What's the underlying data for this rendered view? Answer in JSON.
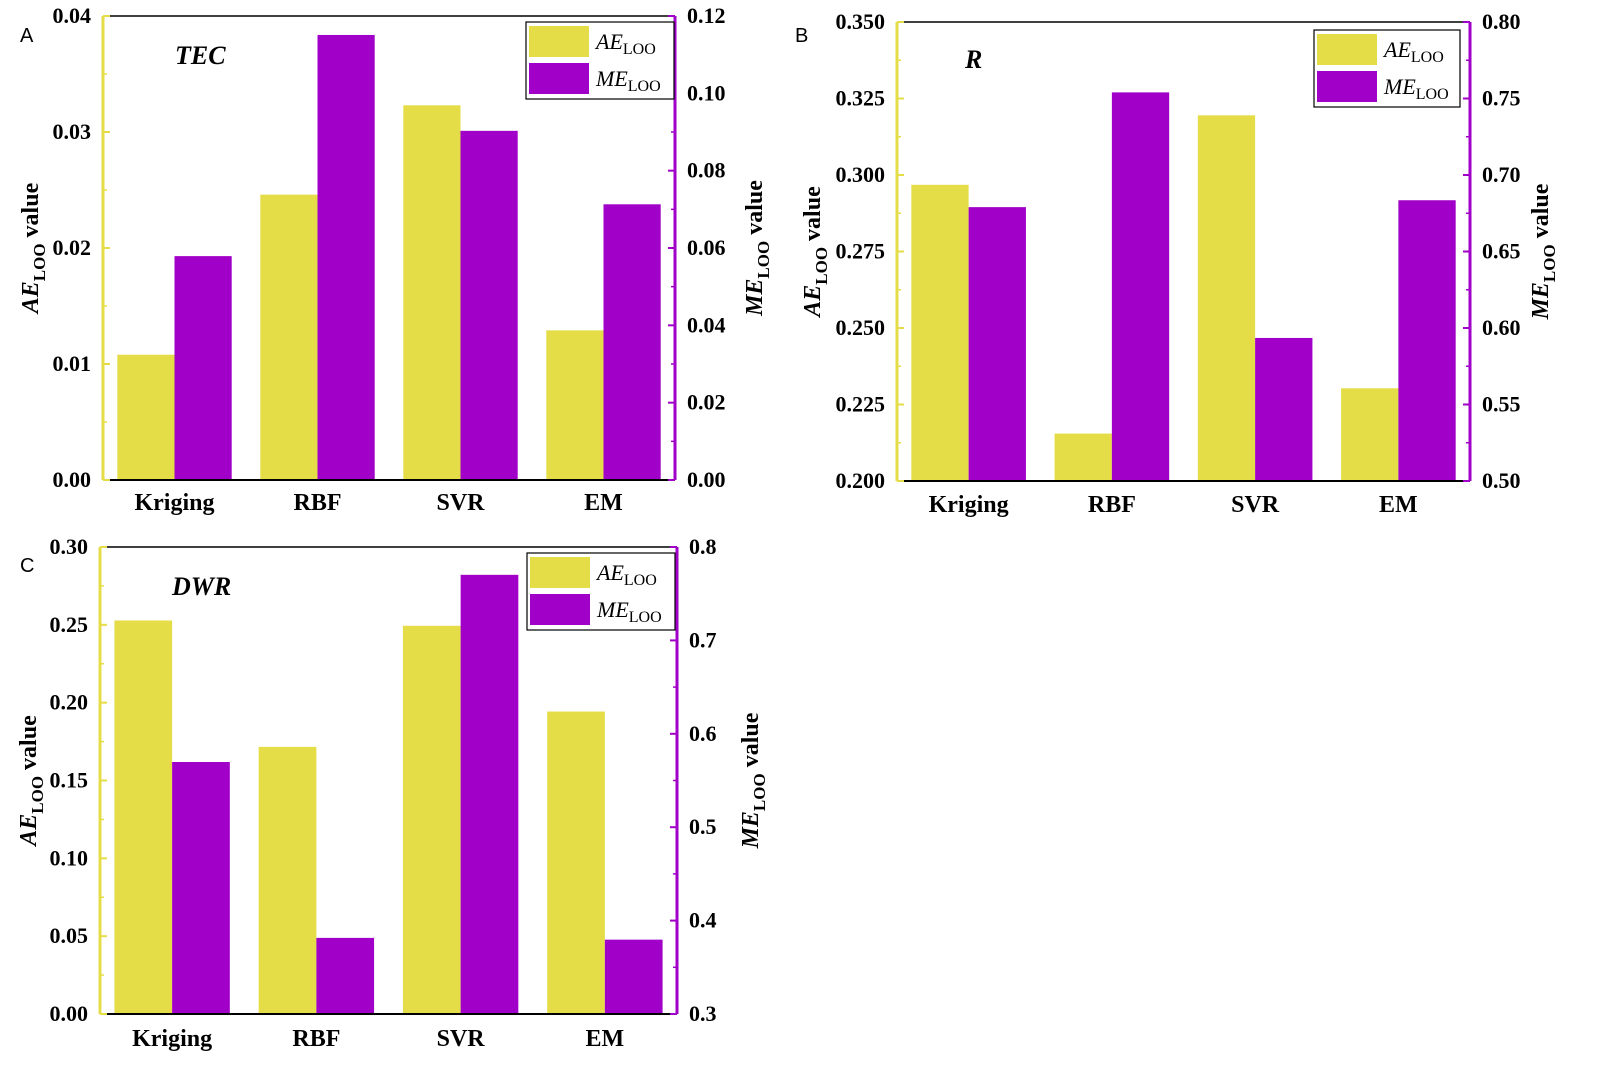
{
  "colors": {
    "ae": "#e5dd48",
    "me": "#a100c8",
    "left_axis": "#e5dd48",
    "right_axis": "#a100c8",
    "frame": "#000000"
  },
  "chart_data": [
    {
      "type": "bar",
      "panel": "A",
      "title": "TEC",
      "categories": [
        "Kriging",
        "RBF",
        "SVR",
        "EM"
      ],
      "series": [
        {
          "name": "AE",
          "name_sub": "LOO",
          "axis": "left",
          "values": [
            0.0108,
            0.0246,
            0.0323,
            0.0129
          ]
        },
        {
          "name": "ME",
          "name_sub": "LOO",
          "axis": "right",
          "values": [
            0.0579,
            0.1151,
            0.0903,
            0.0713
          ]
        }
      ],
      "ylabel_left": {
        "main": "AE",
        "sub": "LOO",
        "tail": " value"
      },
      "ylabel_right": {
        "main": "ME",
        "sub": "LOO",
        "tail": " value"
      },
      "ylim_left": [
        0,
        0.04
      ],
      "ylim_right": [
        0,
        0.12
      ],
      "yticks_left": [
        "0.00",
        "0.01",
        "0.02",
        "0.03",
        "0.04"
      ],
      "yticks_right": [
        "0.00",
        "0.02",
        "0.04",
        "0.06",
        "0.08",
        "0.10",
        "0.12"
      ],
      "legend": "top-right"
    },
    {
      "type": "bar",
      "panel": "B",
      "title": "R",
      "categories": [
        "Kriging",
        "RBF",
        "SVR",
        "EM"
      ],
      "series": [
        {
          "name": "AE",
          "name_sub": "LOO",
          "axis": "left",
          "values": [
            0.2968,
            0.2155,
            0.3195,
            0.2303
          ]
        },
        {
          "name": "ME",
          "name_sub": "LOO",
          "axis": "right",
          "values": [
            0.679,
            0.754,
            0.5935,
            0.6835
          ]
        }
      ],
      "ylabel_left": {
        "main": "AE",
        "sub": "LOO",
        "tail": " value"
      },
      "ylabel_right": {
        "main": "ME",
        "sub": "LOO",
        "tail": " value"
      },
      "ylim_left": [
        0.2,
        0.35
      ],
      "ylim_right": [
        0.5,
        0.8
      ],
      "yticks_left": [
        "0.200",
        "0.225",
        "0.250",
        "0.275",
        "0.300",
        "0.325",
        "0.350"
      ],
      "yticks_right": [
        "0.50",
        "0.55",
        "0.60",
        "0.65",
        "0.70",
        "0.75",
        "0.80"
      ],
      "legend": "top-right"
    },
    {
      "type": "bar",
      "panel": "C",
      "title": "DWR",
      "categories": [
        "Kriging",
        "RBF",
        "SVR",
        "EM"
      ],
      "series": [
        {
          "name": "AE",
          "name_sub": "LOO",
          "axis": "left",
          "values": [
            0.2528,
            0.1716,
            0.2494,
            0.1943
          ]
        },
        {
          "name": "ME",
          "name_sub": "LOO",
          "axis": "right",
          "values": [
            0.5698,
            0.3815,
            0.7702,
            0.3796
          ]
        }
      ],
      "ylabel_left": {
        "main": "AE",
        "sub": "LOO",
        "tail": " value"
      },
      "ylabel_right": {
        "main": "ME",
        "sub": "LOO",
        "tail": " value"
      },
      "ylim_left": [
        0,
        0.3
      ],
      "ylim_right": [
        0.3,
        0.8
      ],
      "yticks_left": [
        "0.00",
        "0.05",
        "0.10",
        "0.15",
        "0.20",
        "0.25",
        "0.30"
      ],
      "yticks_right": [
        "0.3",
        "0.4",
        "0.5",
        "0.6",
        "0.7",
        "0.8"
      ],
      "legend": "top-right"
    }
  ]
}
